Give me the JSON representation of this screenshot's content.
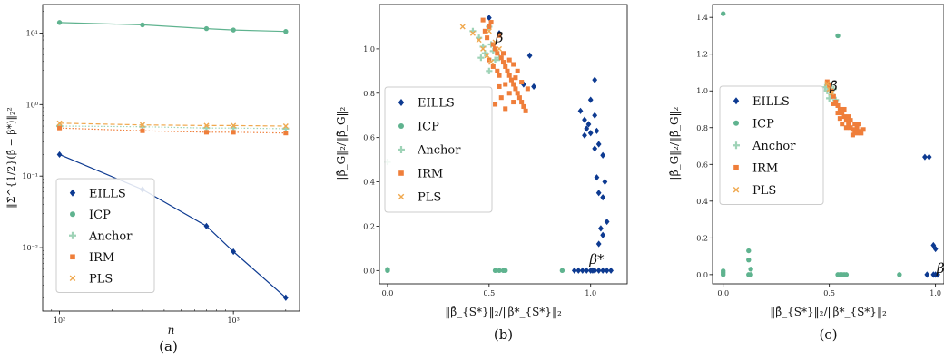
{
  "colors": {
    "EILLS": "#0d3a91",
    "ICP": "#5fb38f",
    "Anchor": "#9fd3b7",
    "IRM": "#ef7e3a",
    "PLS": "#f0a84e",
    "annotation": "#d42a1e"
  },
  "chart_data": [
    {
      "type": "line",
      "caption": "(a)",
      "xlabel": "n",
      "ylabel": "‖Σ̄^{1/2}(β̂ − β*)‖₂²",
      "xscale": "log",
      "yscale": "log",
      "xlim": [
        80,
        2400
      ],
      "ylim": [
        0.0013,
        25
      ],
      "xticks": [
        {
          "v": 100,
          "label": "10²"
        },
        {
          "v": 1000,
          "label": "10³"
        }
      ],
      "yticks": [
        {
          "v": 0.01,
          "label": "10⁻²"
        },
        {
          "v": 0.1,
          "label": "10⁻¹"
        },
        {
          "v": 1,
          "label": "10⁰"
        },
        {
          "v": 10,
          "label": "10¹"
        }
      ],
      "x": [
        100,
        300,
        700,
        1000,
        2000
      ],
      "series": [
        {
          "name": "EILLS",
          "values": [
            0.2,
            0.065,
            0.02,
            0.0088,
            0.002
          ],
          "marker": "diamond",
          "line": "solid"
        },
        {
          "name": "ICP",
          "values": [
            14,
            13,
            11.5,
            11,
            10.5
          ],
          "marker": "circle",
          "line": "solid"
        },
        {
          "name": "Anchor",
          "values": [
            0.5,
            0.49,
            0.47,
            0.47,
            0.46
          ],
          "marker": "plus",
          "line": "dotted"
        },
        {
          "name": "IRM",
          "values": [
            0.47,
            0.43,
            0.41,
            0.41,
            0.4
          ],
          "marker": "square",
          "line": "dotted"
        },
        {
          "name": "PLS",
          "values": [
            0.55,
            0.52,
            0.51,
            0.51,
            0.5
          ],
          "marker": "x",
          "line": "dashed"
        }
      ],
      "legend": [
        "EILLS",
        "ICP",
        "Anchor",
        "IRM",
        "PLS"
      ],
      "legend_position": "lower-left"
    },
    {
      "type": "scatter",
      "caption": "(b)",
      "xlabel": "‖β̂_{S*}‖₂/‖β*_{S*}‖₂",
      "ylabel": "‖β̂_G‖₂/‖β̄_G‖₂",
      "xlim": [
        -0.04,
        1.18
      ],
      "ylim": [
        -0.06,
        1.2
      ],
      "xticks": [
        0.0,
        0.5,
        1.0
      ],
      "xtick_labels": [
        "0.0",
        "0.5",
        "1.0"
      ],
      "yticks": [
        0.0,
        0.2,
        0.4,
        0.6,
        0.8,
        1.0
      ],
      "ytick_labels": [
        "0.0",
        "0.2",
        "0.4",
        "0.6",
        "0.8",
        "1.0"
      ],
      "annotations": [
        {
          "text": "β̄",
          "x": 0.55,
          "y": 1.03
        },
        {
          "text": "β*",
          "x": 1.03,
          "y": 0.03
        }
      ],
      "legend": [
        "EILLS",
        "ICP",
        "Anchor",
        "IRM",
        "PLS"
      ],
      "legend_position": "center-left",
      "series": [
        {
          "name": "EILLS",
          "points": [
            [
              0.5,
              1.14
            ],
            [
              0.55,
              1.07
            ],
            [
              0.7,
              0.97
            ],
            [
              0.72,
              0.83
            ],
            [
              0.67,
              0.84
            ],
            [
              1.02,
              0.86
            ],
            [
              1.0,
              0.77
            ],
            [
              1.02,
              0.7
            ],
            [
              0.95,
              0.72
            ],
            [
              0.97,
              0.68
            ],
            [
              0.99,
              0.66
            ],
            [
              0.98,
              0.64
            ],
            [
              1.0,
              0.62
            ],
            [
              1.03,
              0.63
            ],
            [
              0.97,
              0.61
            ],
            [
              1.04,
              0.57
            ],
            [
              1.06,
              0.52
            ],
            [
              1.02,
              0.55
            ],
            [
              1.03,
              0.42
            ],
            [
              1.07,
              0.4
            ],
            [
              1.04,
              0.35
            ],
            [
              1.06,
              0.33
            ],
            [
              1.08,
              0.22
            ],
            [
              1.05,
              0.19
            ],
            [
              1.06,
              0.16
            ],
            [
              1.04,
              0.12
            ],
            [
              0.92,
              0.0
            ],
            [
              0.94,
              0.0
            ],
            [
              0.96,
              0.0
            ],
            [
              0.98,
              0.0
            ],
            [
              1.0,
              0.0
            ],
            [
              1.01,
              0.0
            ],
            [
              1.02,
              0.0
            ],
            [
              1.04,
              0.0
            ],
            [
              1.06,
              0.0
            ],
            [
              1.08,
              0.0
            ],
            [
              1.1,
              0.0
            ]
          ]
        },
        {
          "name": "ICP",
          "points": [
            [
              0.0,
              0.0
            ],
            [
              0.0,
              0.005
            ],
            [
              0.53,
              0.0
            ],
            [
              0.55,
              0.0
            ],
            [
              0.57,
              0.0
            ],
            [
              0.58,
              0.0
            ],
            [
              0.86,
              0.0
            ]
          ]
        },
        {
          "name": "Anchor",
          "points": [
            [
              0.0,
              0.49
            ],
            [
              0.42,
              1.08
            ],
            [
              0.45,
              1.05
            ],
            [
              0.47,
              1.01
            ],
            [
              0.48,
              0.98
            ],
            [
              0.5,
              1.1
            ],
            [
              0.52,
              0.99
            ],
            [
              0.53,
              0.95
            ],
            [
              0.5,
              0.9
            ],
            [
              0.55,
              0.96
            ],
            [
              0.46,
              0.96
            ],
            [
              0.51,
              1.02
            ]
          ]
        },
        {
          "name": "IRM",
          "points": [
            [
              0.47,
              1.13
            ],
            [
              0.48,
              1.08
            ],
            [
              0.49,
              1.05
            ],
            [
              0.5,
              1.1
            ],
            [
              0.51,
              1.12
            ],
            [
              0.52,
              1.02
            ],
            [
              0.53,
              1.0
            ],
            [
              0.54,
              0.98
            ],
            [
              0.55,
              1.06
            ],
            [
              0.56,
              0.96
            ],
            [
              0.57,
              0.94
            ],
            [
              0.58,
              0.92
            ],
            [
              0.59,
              0.9
            ],
            [
              0.6,
              0.88
            ],
            [
              0.61,
              0.86
            ],
            [
              0.62,
              0.84
            ],
            [
              0.63,
              0.82
            ],
            [
              0.64,
              0.8
            ],
            [
              0.65,
              0.78
            ],
            [
              0.66,
              0.76
            ],
            [
              0.67,
              0.74
            ],
            [
              0.68,
              0.72
            ],
            [
              0.52,
              0.92
            ],
            [
              0.55,
              0.88
            ],
            [
              0.58,
              0.84
            ],
            [
              0.6,
              0.8
            ],
            [
              0.62,
              0.76
            ],
            [
              0.56,
              0.78
            ],
            [
              0.58,
              0.73
            ],
            [
              0.53,
              0.75
            ],
            [
              0.55,
              0.83
            ],
            [
              0.6,
              0.95
            ],
            [
              0.62,
              0.93
            ],
            [
              0.64,
              0.9
            ],
            [
              0.66,
              0.85
            ],
            [
              0.69,
              0.82
            ],
            [
              0.5,
              0.95
            ],
            [
              0.54,
              0.9
            ],
            [
              0.57,
              0.98
            ],
            [
              0.63,
              0.87
            ]
          ]
        },
        {
          "name": "PLS",
          "points": [
            [
              0.37,
              1.1
            ],
            [
              0.42,
              1.07
            ],
            [
              0.45,
              1.04
            ],
            [
              0.47,
              1.0
            ],
            [
              0.49,
              0.97
            ],
            [
              0.5,
              1.08
            ],
            [
              0.53,
              1.03
            ],
            [
              0.55,
              1.0
            ],
            [
              0.51,
              0.94
            ]
          ]
        }
      ]
    },
    {
      "type": "scatter",
      "caption": "(c)",
      "xlabel": "‖β̂_{S*}‖₂/‖β*_{S*}‖₂",
      "ylabel": "‖β̂_G‖₂/‖β̄_G‖₂",
      "xlim": [
        -0.05,
        1.04
      ],
      "ylim": [
        -0.05,
        1.47
      ],
      "xticks": [
        0.0,
        0.5,
        1.0
      ],
      "xtick_labels": [
        "0.0",
        "0.5",
        "1.0"
      ],
      "yticks": [
        0.0,
        0.2,
        0.4,
        0.6,
        0.8,
        1.0,
        1.2,
        1.4
      ],
      "ytick_labels": [
        "0.0",
        "0.2",
        "0.4",
        "0.6",
        "0.8",
        "1.0",
        "1.2",
        "1.4"
      ],
      "annotations": [
        {
          "text": "β̄",
          "x": 0.52,
          "y": 1.0
        },
        {
          "text": "β*",
          "x": 1.04,
          "y": 0.01
        }
      ],
      "legend": [
        "EILLS",
        "ICP",
        "Anchor",
        "IRM",
        "PLS"
      ],
      "legend_position": "upper-left",
      "series": [
        {
          "name": "EILLS",
          "points": [
            [
              0.95,
              0.64
            ],
            [
              0.97,
              0.64
            ],
            [
              0.99,
              0.16
            ],
            [
              1.0,
              0.14
            ],
            [
              0.99,
              0.0
            ],
            [
              1.0,
              0.0
            ],
            [
              1.01,
              0.0
            ],
            [
              0.96,
              0.0
            ]
          ]
        },
        {
          "name": "ICP",
          "points": [
            [
              0.0,
              1.42
            ],
            [
              0.54,
              1.3
            ],
            [
              0.12,
              0.13
            ],
            [
              0.12,
              0.08
            ],
            [
              0.13,
              0.03
            ],
            [
              0.0,
              0.02
            ],
            [
              0.0,
              0.01
            ],
            [
              0.0,
              0.0
            ],
            [
              0.12,
              0.0
            ],
            [
              0.13,
              0.0
            ],
            [
              0.54,
              0.0
            ],
            [
              0.55,
              0.0
            ],
            [
              0.56,
              0.0
            ],
            [
              0.57,
              0.0
            ],
            [
              0.58,
              0.0
            ],
            [
              0.83,
              0.0
            ]
          ]
        },
        {
          "name": "Anchor",
          "points": [
            [
              0.48,
              1.02
            ],
            [
              0.49,
              1.0
            ],
            [
              0.5,
              1.03
            ],
            [
              0.51,
              0.98
            ],
            [
              0.52,
              1.01
            ],
            [
              0.5,
              0.96
            ],
            [
              0.53,
              0.95
            ]
          ]
        },
        {
          "name": "IRM",
          "points": [
            [
              0.49,
              1.05
            ],
            [
              0.5,
              1.03
            ],
            [
              0.51,
              1.0
            ],
            [
              0.52,
              0.97
            ],
            [
              0.53,
              0.94
            ],
            [
              0.54,
              0.92
            ],
            [
              0.55,
              0.9
            ],
            [
              0.56,
              0.88
            ],
            [
              0.57,
              0.86
            ],
            [
              0.58,
              0.84
            ],
            [
              0.59,
              0.82
            ],
            [
              0.6,
              0.8
            ],
            [
              0.61,
              0.79
            ],
            [
              0.62,
              0.78
            ],
            [
              0.63,
              0.8
            ],
            [
              0.64,
              0.78
            ],
            [
              0.65,
              0.77
            ],
            [
              0.66,
              0.79
            ],
            [
              0.55,
              0.85
            ],
            [
              0.56,
              0.82
            ],
            [
              0.58,
              0.8
            ],
            [
              0.6,
              0.84
            ],
            [
              0.62,
              0.82
            ],
            [
              0.63,
              0.77
            ],
            [
              0.54,
              0.88
            ],
            [
              0.57,
              0.9
            ],
            [
              0.59,
              0.86
            ],
            [
              0.61,
              0.76
            ],
            [
              0.64,
              0.82
            ],
            [
              0.52,
              0.93
            ]
          ]
        },
        {
          "name": "PLS",
          "points": [
            [
              0.49,
              1.04
            ],
            [
              0.5,
              1.01
            ],
            [
              0.51,
              0.99
            ]
          ]
        }
      ]
    }
  ]
}
